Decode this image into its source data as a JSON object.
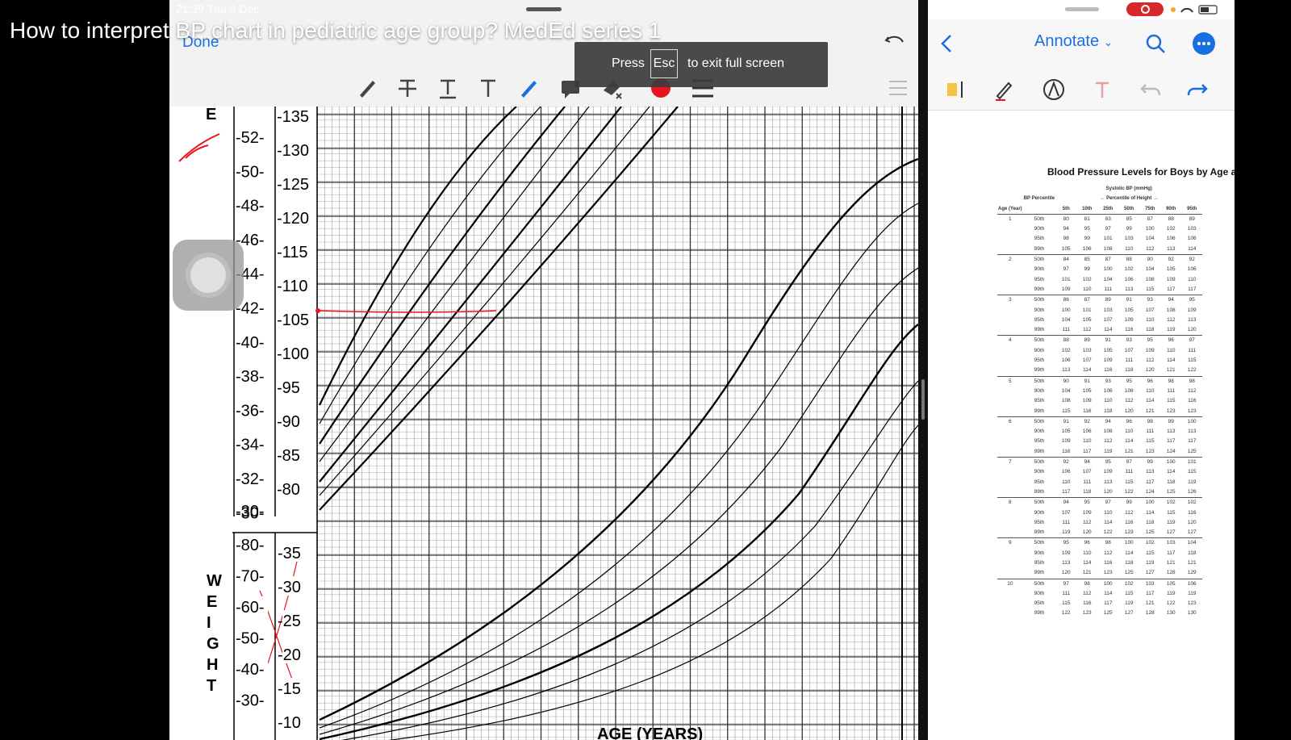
{
  "video": {
    "title": "How to interpret BP chart in pediatric age group? MedEd series 1"
  },
  "fullscreen_toast": {
    "prefix": "Press",
    "key": "Esc",
    "suffix": "to exit full screen"
  },
  "left_app": {
    "status_time": "21:39  Thu 3 Dec",
    "done_label": "Done",
    "tools": [
      "pen-icon",
      "strikethrough-icon",
      "underline-icon",
      "text-icon",
      "pencil-icon",
      "comment-icon",
      "eraser-icon",
      "color-red-icon",
      "line-width-icon"
    ],
    "ink_color": "#e8141b"
  },
  "growth_chart": {
    "stature_label": "E",
    "weight_label_letters": [
      "W",
      "E",
      "I",
      "G",
      "H",
      "T"
    ],
    "stature_in_ticks": [
      "52",
      "50",
      "48",
      "46",
      "44",
      "42",
      "40",
      "38",
      "36",
      "34",
      "32",
      "30"
    ],
    "stature_cm_ticks": [
      "135",
      "130",
      "125",
      "120",
      "115",
      "110",
      "105",
      "100",
      "95",
      "90",
      "85",
      "80"
    ],
    "weight_lb_ticks": [
      "80",
      "70",
      "60",
      "50",
      "40",
      "30"
    ],
    "weight_kg_ticks": [
      "35",
      "30",
      "25",
      "20",
      "15",
      "10"
    ],
    "x_axis_label": "AGE (YEARS)"
  },
  "right_app": {
    "annotate_label": "Annotate",
    "tools": [
      "highlighter-icon",
      "pen-icon",
      "markup-icon",
      "text-icon",
      "undo-icon",
      "redo-icon"
    ],
    "doc_title": "Blood Pressure Levels for Boys by Age a",
    "table": {
      "header_systolic": "Systolic BP (mmHg)",
      "header_height": "← Percentile of Height →",
      "col_age": "Age (Year)",
      "col_bp": "BP Percentile",
      "height_cols": [
        "5th",
        "10th",
        "25th",
        "50th",
        "75th",
        "90th",
        "95th"
      ],
      "groups": [
        {
          "age": "1",
          "rows": [
            [
              "50th",
              "80",
              "81",
              "83",
              "85",
              "87",
              "88",
              "89"
            ],
            [
              "90th",
              "94",
              "95",
              "97",
              "99",
              "100",
              "102",
              "103"
            ],
            [
              "95th",
              "98",
              "99",
              "101",
              "103",
              "104",
              "106",
              "106"
            ],
            [
              "99th",
              "105",
              "106",
              "108",
              "110",
              "112",
              "113",
              "114"
            ]
          ]
        },
        {
          "age": "2",
          "rows": [
            [
              "50th",
              "84",
              "85",
              "87",
              "88",
              "90",
              "92",
              "92"
            ],
            [
              "90th",
              "97",
              "99",
              "100",
              "102",
              "104",
              "105",
              "106"
            ],
            [
              "95th",
              "101",
              "102",
              "104",
              "106",
              "108",
              "109",
              "110"
            ],
            [
              "99th",
              "109",
              "110",
              "111",
              "113",
              "115",
              "117",
              "117"
            ]
          ]
        },
        {
          "age": "3",
          "rows": [
            [
              "50th",
              "86",
              "87",
              "89",
              "91",
              "93",
              "94",
              "95"
            ],
            [
              "90th",
              "100",
              "101",
              "103",
              "105",
              "107",
              "108",
              "109"
            ],
            [
              "95th",
              "104",
              "105",
              "107",
              "109",
              "110",
              "112",
              "113"
            ],
            [
              "99th",
              "111",
              "112",
              "114",
              "116",
              "118",
              "119",
              "120"
            ]
          ]
        },
        {
          "age": "4",
          "rows": [
            [
              "50th",
              "88",
              "89",
              "91",
              "93",
              "95",
              "96",
              "97"
            ],
            [
              "90th",
              "102",
              "103",
              "105",
              "107",
              "109",
              "110",
              "111"
            ],
            [
              "95th",
              "106",
              "107",
              "109",
              "111",
              "112",
              "114",
              "115"
            ],
            [
              "99th",
              "113",
              "114",
              "116",
              "118",
              "120",
              "121",
              "122"
            ]
          ]
        },
        {
          "age": "5",
          "rows": [
            [
              "50th",
              "90",
              "91",
              "93",
              "95",
              "96",
              "98",
              "98"
            ],
            [
              "90th",
              "104",
              "105",
              "106",
              "108",
              "110",
              "111",
              "112"
            ],
            [
              "95th",
              "108",
              "109",
              "110",
              "112",
              "114",
              "115",
              "116"
            ],
            [
              "99th",
              "115",
              "116",
              "118",
              "120",
              "121",
              "123",
              "123"
            ]
          ]
        },
        {
          "age": "6",
          "rows": [
            [
              "50th",
              "91",
              "92",
              "94",
              "96",
              "98",
              "99",
              "100"
            ],
            [
              "90th",
              "105",
              "106",
              "108",
              "110",
              "111",
              "113",
              "113"
            ],
            [
              "95th",
              "109",
              "110",
              "112",
              "114",
              "115",
              "117",
              "117"
            ],
            [
              "99th",
              "116",
              "117",
              "119",
              "121",
              "123",
              "124",
              "125"
            ]
          ]
        },
        {
          "age": "7",
          "rows": [
            [
              "50th",
              "92",
              "94",
              "95",
              "97",
              "99",
              "100",
              "101"
            ],
            [
              "90th",
              "106",
              "107",
              "109",
              "111",
              "113",
              "114",
              "115"
            ],
            [
              "95th",
              "110",
              "111",
              "113",
              "115",
              "117",
              "118",
              "119"
            ],
            [
              "99th",
              "117",
              "118",
              "120",
              "122",
              "124",
              "125",
              "126"
            ]
          ]
        },
        {
          "age": "8",
          "rows": [
            [
              "50th",
              "94",
              "95",
              "97",
              "99",
              "100",
              "102",
              "102"
            ],
            [
              "90th",
              "107",
              "109",
              "110",
              "112",
              "114",
              "115",
              "116"
            ],
            [
              "95th",
              "111",
              "112",
              "114",
              "116",
              "118",
              "119",
              "120"
            ],
            [
              "99th",
              "119",
              "120",
              "122",
              "123",
              "125",
              "127",
              "127"
            ]
          ]
        },
        {
          "age": "9",
          "rows": [
            [
              "50th",
              "95",
              "96",
              "98",
              "100",
              "102",
              "103",
              "104"
            ],
            [
              "90th",
              "109",
              "110",
              "112",
              "114",
              "115",
              "117",
              "118"
            ],
            [
              "95th",
              "113",
              "114",
              "116",
              "118",
              "119",
              "121",
              "121"
            ],
            [
              "99th",
              "120",
              "121",
              "123",
              "125",
              "127",
              "128",
              "129"
            ]
          ]
        },
        {
          "age": "10",
          "rows": [
            [
              "50th",
              "97",
              "98",
              "100",
              "102",
              "103",
              "105",
              "106"
            ],
            [
              "90th",
              "111",
              "112",
              "114",
              "115",
              "117",
              "119",
              "119"
            ],
            [
              "95th",
              "115",
              "116",
              "117",
              "119",
              "121",
              "122",
              "123"
            ],
            [
              "99th",
              "122",
              "123",
              "125",
              "127",
              "128",
              "130",
              "130"
            ]
          ]
        }
      ]
    }
  }
}
